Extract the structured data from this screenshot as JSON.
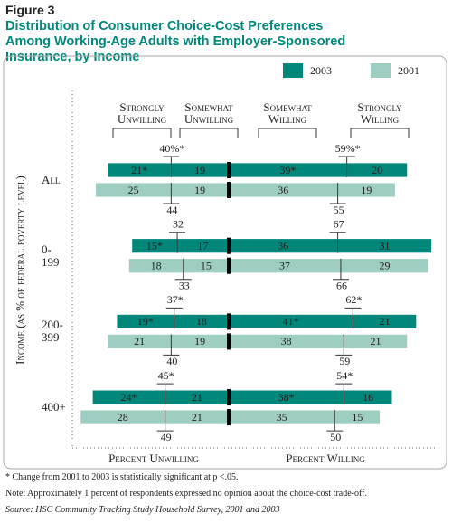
{
  "chart_data": {
    "type": "diverging_bar",
    "figure_label": "Figure 3",
    "title": "Distribution of Consumer Choice-Cost Preferences Among Working-Age Adults with Employer-Sponsored Insurance, by Income",
    "column_headers": [
      "Strongly Unwilling",
      "Somewhat Unwilling",
      "Somewhat Willing",
      "Strongly Willing"
    ],
    "y_label": "Income (as % of federal poverty level)",
    "x_labels": [
      "Percent Unwilling",
      "Percent Willing"
    ],
    "categories": [
      "All",
      "0-199",
      "200-399",
      "400+"
    ],
    "series": [
      {
        "name": "2003",
        "color": "#00877a",
        "values": [
          [
            21,
            19,
            39,
            20
          ],
          [
            15,
            17,
            36,
            31
          ],
          [
            19,
            18,
            41,
            21
          ],
          [
            24,
            21,
            38,
            16
          ]
        ],
        "value_labels": [
          [
            "21*",
            "19",
            "39*",
            "20"
          ],
          [
            "15*",
            "17",
            "36",
            "31"
          ],
          [
            "19*",
            "18",
            "41*",
            "21"
          ],
          [
            "24*",
            "21",
            "38*",
            "16"
          ]
        ],
        "unwilling_totals": [
          40,
          32,
          37,
          45
        ],
        "unwilling_total_labels": [
          "40%*",
          "32",
          "37*",
          "45*"
        ],
        "willing_totals": [
          59,
          67,
          62,
          54
        ],
        "willing_total_labels": [
          "59%*",
          "67",
          "62*",
          "54*"
        ]
      },
      {
        "name": "2001",
        "color": "#9ecdc2",
        "values": [
          [
            25,
            19,
            36,
            19
          ],
          [
            18,
            15,
            37,
            29
          ],
          [
            21,
            19,
            38,
            21
          ],
          [
            28,
            21,
            35,
            15
          ]
        ],
        "unwilling_totals": [
          44,
          33,
          40,
          49
        ],
        "willing_totals": [
          55,
          66,
          59,
          50
        ]
      }
    ],
    "notes": [
      "* Change from 2001 to 2003 is statistically significant at p <.05.",
      "Note: Approximately 1 percent of respondents expressed no opinion about the choice-cost trade-off.",
      "Source: HSC Community Tracking Study Household Survey, 2001 and 2003"
    ]
  }
}
